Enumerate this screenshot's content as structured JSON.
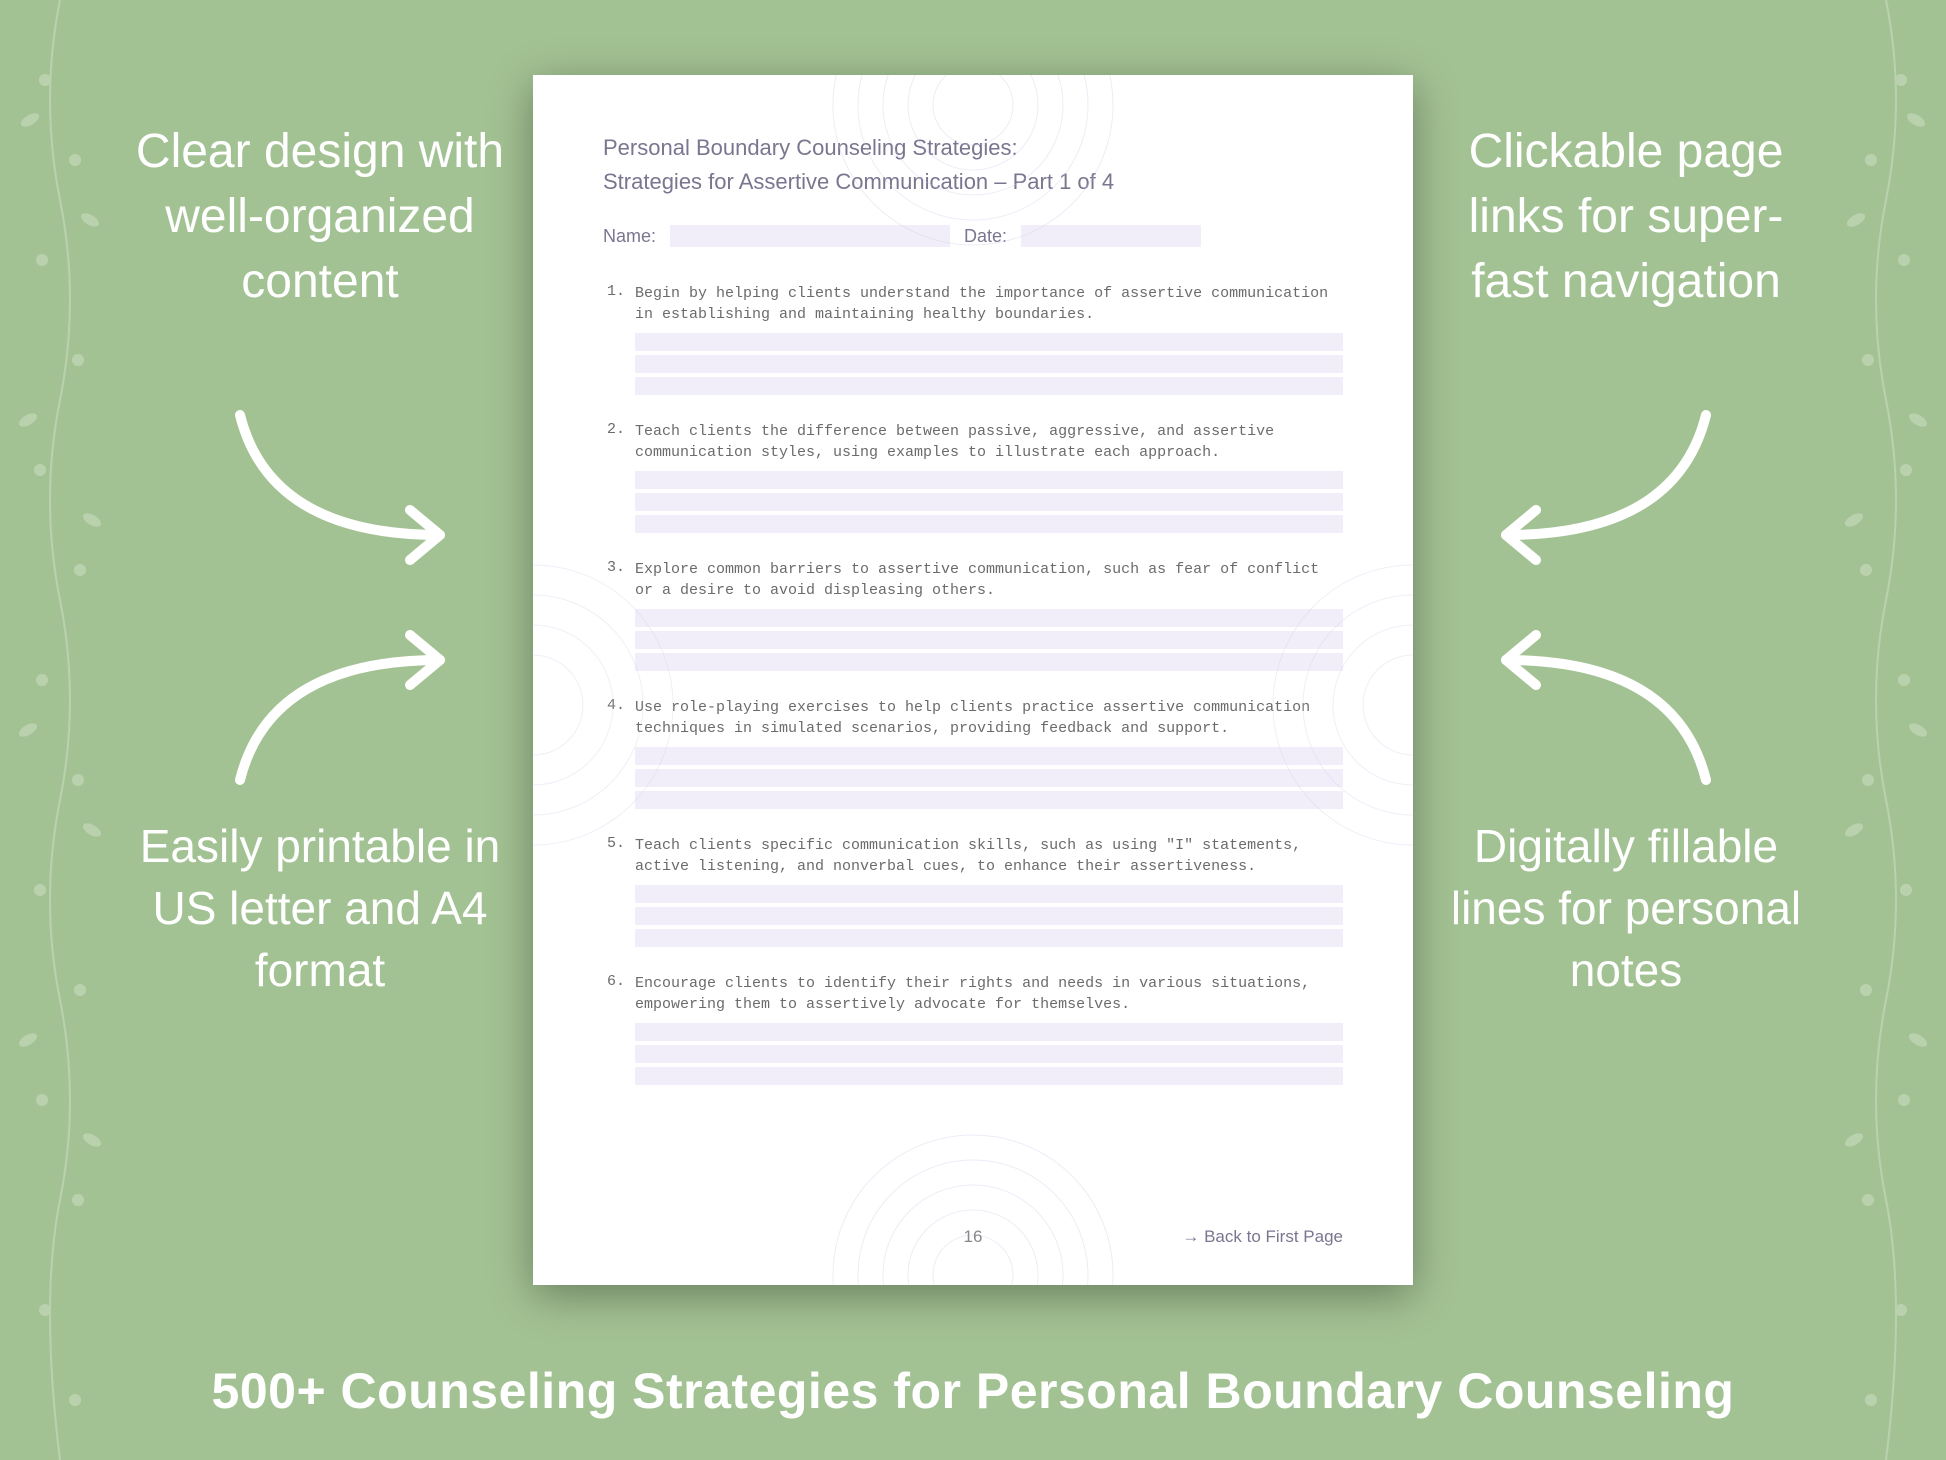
{
  "background_color": "#a3c293",
  "text_color": "#ffffff",
  "page_bg": "#ffffff",
  "page_fill_line_color": "#f2eef9",
  "page_text_color": "#7a7690",
  "page_mono_color": "#6b6b6b",
  "callouts": {
    "top_left": "Clear design with well-organized content",
    "top_right": "Clickable page links for super-fast navigation",
    "bottom_left": "Easily printable in US letter and A4 format",
    "bottom_right": "Digitally fillable lines for personal notes"
  },
  "banner": "500+ Counseling Strategies for Personal Boundary Counseling",
  "document": {
    "title_line1": "Personal Boundary Counseling Strategies:",
    "title_line2": "Strategies for Assertive Communication – Part 1 of 4",
    "name_label": "Name:",
    "date_label": "Date:",
    "page_number": "16",
    "back_link": "→ Back to First Page",
    "items": [
      {
        "n": "1.",
        "text": "Begin by helping clients understand the importance of assertive communication in establishing and maintaining healthy boundaries."
      },
      {
        "n": "2.",
        "text": "Teach clients the difference between passive, aggressive, and assertive communication styles, using examples to illustrate each approach."
      },
      {
        "n": "3.",
        "text": "Explore common barriers to assertive communication, such as fear of conflict or a desire to avoid displeasing others."
      },
      {
        "n": "4.",
        "text": "Use role-playing exercises to help clients practice assertive communication techniques in simulated scenarios, providing feedback and support."
      },
      {
        "n": "5.",
        "text": "Teach clients specific communication skills, such as using \"I\" statements, active listening, and nonverbal cues, to enhance their assertiveness."
      },
      {
        "n": "6.",
        "text": "Encourage clients to identify their rights and needs in various situations, empowering them to assertively advocate for themselves."
      }
    ],
    "fill_lines_per_item": 3
  }
}
